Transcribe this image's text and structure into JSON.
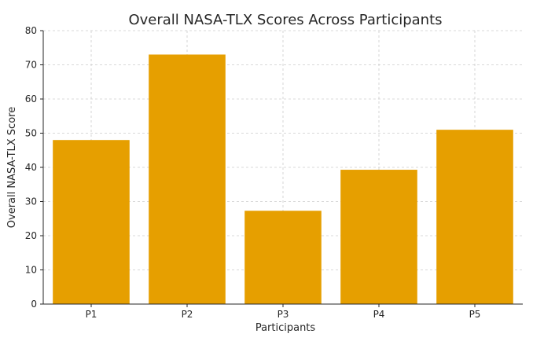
{
  "chart_data": {
    "type": "bar",
    "title": "Overall NASA-TLX Scores Across Participants",
    "xlabel": "Participants",
    "ylabel": "Overall NASA-TLX Score",
    "categories": [
      "P1",
      "P2",
      "P3",
      "P4",
      "P5"
    ],
    "values": [
      48,
      73,
      27.3,
      39.3,
      51
    ],
    "ylim": [
      0,
      80
    ],
    "yticks": [
      0,
      10,
      20,
      30,
      40,
      50,
      60,
      70,
      80
    ],
    "grid": true,
    "bar_color": "#E69F00"
  }
}
